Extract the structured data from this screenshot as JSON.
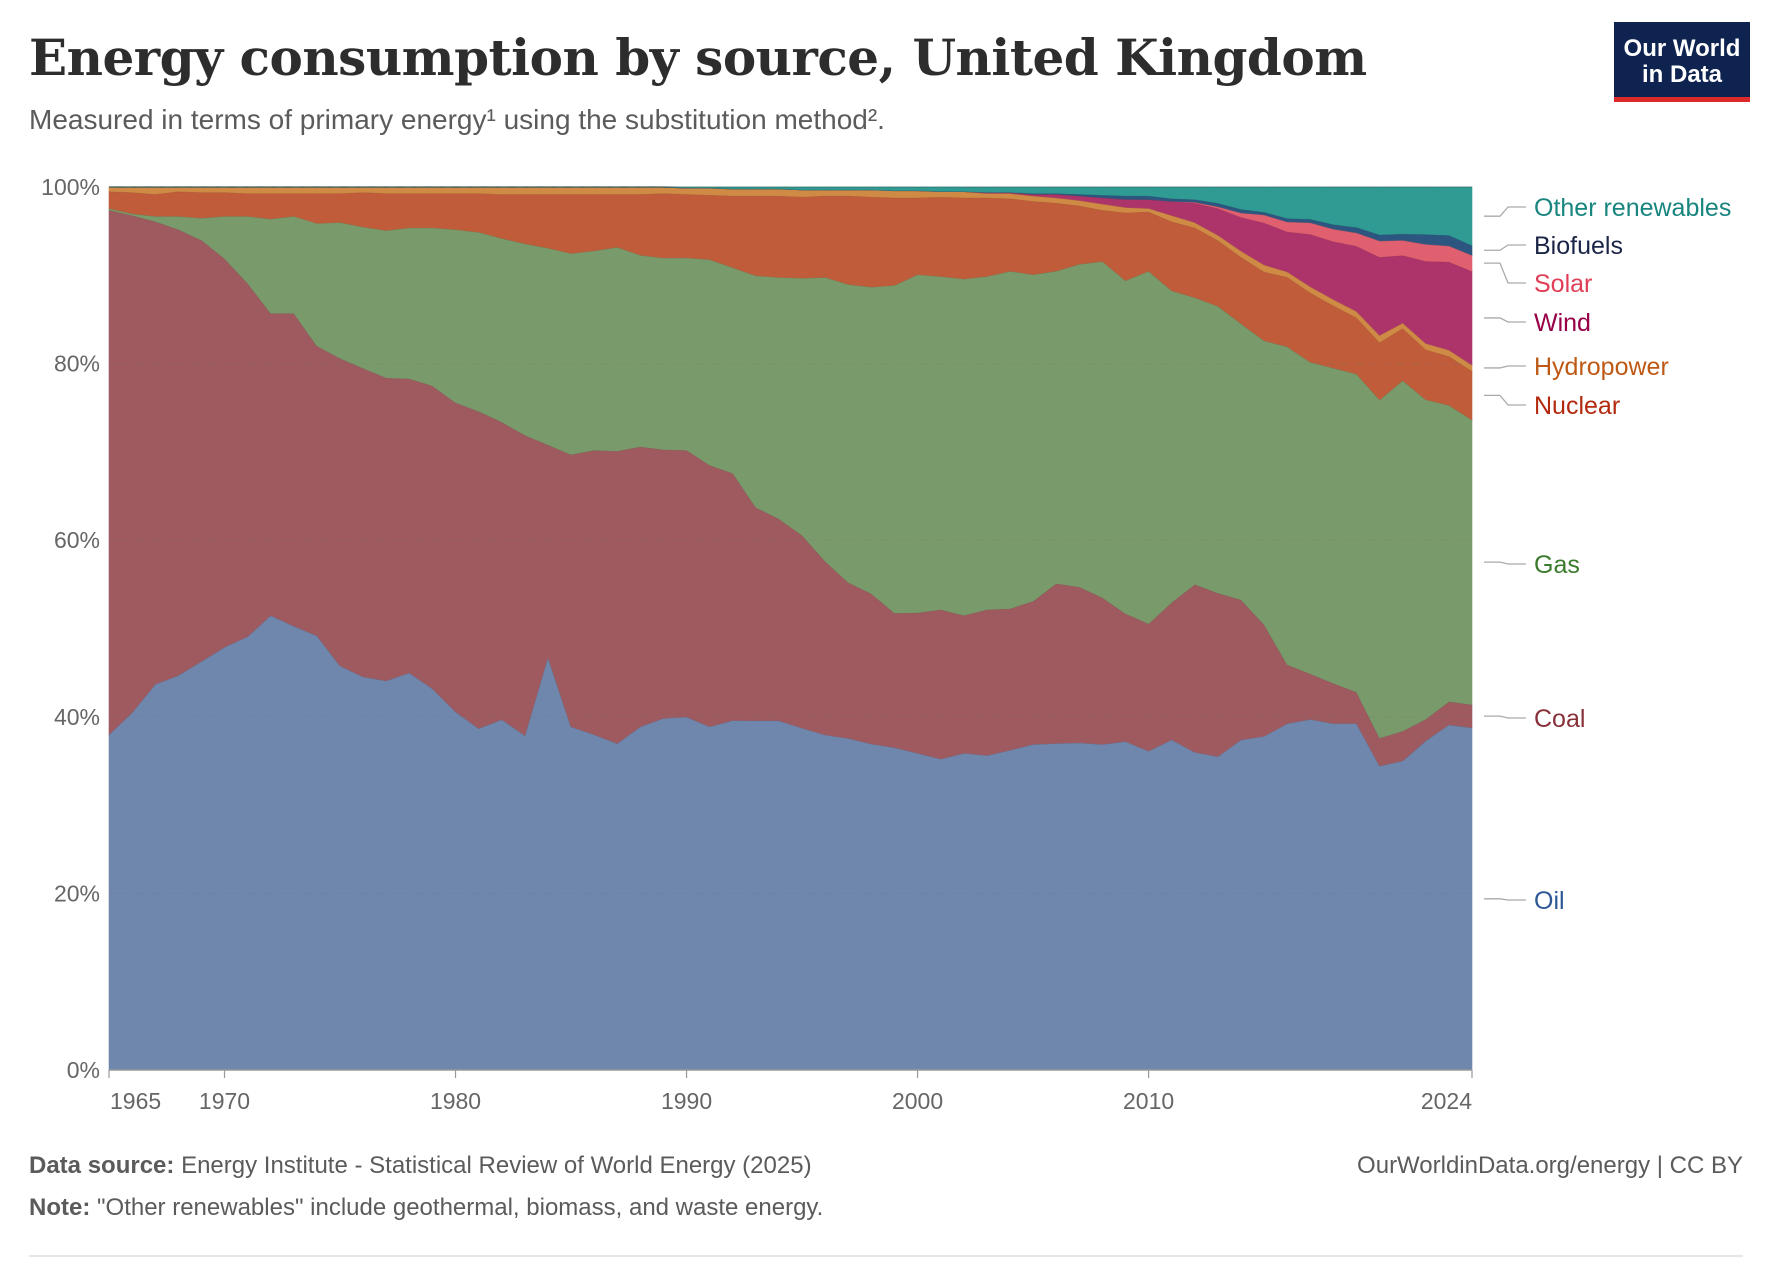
{
  "header": {
    "title": "Energy consumption by source, United Kingdom",
    "subtitle": "Measured in terms of primary energy¹ using the substitution method².",
    "logo_line1": "Our World",
    "logo_line2": "in Data"
  },
  "footer": {
    "source_label": "Data source:",
    "source_text": "Energy Institute - Statistical Review of World Energy (2025)",
    "note_label": "Note:",
    "note_text": "\"Other renewables\" include geothermal, biomass, and waste energy.",
    "credit": "OurWorldinData.org/energy | CC BY"
  },
  "chart_data": {
    "type": "area",
    "stacked": true,
    "normalized": true,
    "title": "Energy consumption by source, United Kingdom",
    "xlabel": "",
    "ylabel": "",
    "ylim": [
      0,
      100
    ],
    "y_ticks": [
      "0%",
      "20%",
      "40%",
      "60%",
      "80%",
      "100%"
    ],
    "y_tick_values": [
      0,
      20,
      40,
      60,
      80,
      100
    ],
    "x_ticks": [
      "1965",
      "1970",
      "1980",
      "1990",
      "2000",
      "2010",
      "2024"
    ],
    "x_tick_values": [
      1965,
      1970,
      1980,
      1990,
      2000,
      2010,
      2024
    ],
    "grid": "horizontal-dashed",
    "legend": "right",
    "x": [
      1965,
      1966,
      1967,
      1968,
      1969,
      1970,
      1971,
      1972,
      1973,
      1974,
      1975,
      1976,
      1977,
      1978,
      1979,
      1980,
      1981,
      1982,
      1983,
      1984,
      1985,
      1986,
      1987,
      1988,
      1989,
      1990,
      1991,
      1992,
      1993,
      1994,
      1995,
      1996,
      1997,
      1998,
      1999,
      2000,
      2001,
      2002,
      2003,
      2004,
      2005,
      2006,
      2007,
      2008,
      2009,
      2010,
      2011,
      2012,
      2013,
      2014,
      2015,
      2016,
      2017,
      2018,
      2019,
      2020,
      2021,
      2022,
      2023,
      2024
    ],
    "series": [
      {
        "name": "Oil",
        "color": "#6f87ad",
        "label_color": "#2c5896",
        "values": [
          38.0,
          40.5,
          43.7,
          44.7,
          46.3,
          47.9,
          49.1,
          51.5,
          50.3,
          49.2,
          45.8,
          44.5,
          44.1,
          45.0,
          43.2,
          40.6,
          38.7,
          39.7,
          37.9,
          46.8,
          38.9,
          38.0,
          37.0,
          38.9,
          39.8,
          40.0,
          38.9,
          39.6,
          39.5,
          39.5,
          38.7,
          37.9,
          37.5,
          36.9,
          36.5,
          35.9,
          35.2,
          35.9,
          35.6,
          36.2,
          36.9,
          37.0,
          37.0,
          36.9,
          37.3,
          36.1,
          37.3,
          36.0,
          35.3,
          37.3,
          37.4,
          38.9,
          39.5,
          38.9,
          38.8,
          33.9,
          34.4,
          36.9,
          38.8,
          38.7
        ]
      },
      {
        "name": "Coal",
        "color": "#9f5a60",
        "label_color": "#883039",
        "values": [
          59.4,
          56.3,
          52.4,
          50.5,
          47.7,
          44.0,
          40.0,
          34.2,
          35.4,
          32.8,
          34.8,
          34.9,
          34.3,
          33.3,
          34.3,
          35.0,
          35.9,
          33.7,
          34.0,
          24.0,
          30.8,
          32.2,
          33.1,
          31.7,
          30.4,
          30.2,
          29.6,
          28.0,
          24.1,
          22.8,
          21.8,
          19.6,
          17.6,
          17.0,
          15.2,
          15.9,
          16.9,
          15.6,
          16.5,
          16.0,
          16.2,
          18.1,
          17.6,
          16.6,
          14.5,
          14.4,
          15.5,
          19.0,
          18.4,
          15.8,
          12.5,
          6.6,
          5.1,
          4.5,
          3.5,
          3.1,
          3.3,
          2.4,
          2.6,
          2.6
        ]
      },
      {
        "name": "Gas",
        "color": "#799b6b",
        "label_color": "#3a7a2c",
        "values": [
          0.2,
          0.2,
          0.6,
          1.5,
          2.5,
          4.8,
          7.6,
          10.7,
          11.0,
          13.9,
          15.4,
          16.0,
          16.7,
          17.1,
          17.9,
          19.6,
          20.3,
          20.8,
          21.7,
          22.3,
          22.8,
          22.6,
          23.1,
          21.7,
          21.7,
          21.8,
          23.3,
          23.3,
          26.2,
          27.3,
          29.1,
          32.1,
          33.7,
          34.7,
          37.1,
          38.3,
          37.7,
          38.1,
          37.7,
          38.2,
          37.0,
          35.4,
          36.5,
          38.1,
          37.8,
          39.9,
          35.2,
          32.5,
          32.3,
          31.2,
          31.8,
          35.7,
          35.1,
          35.4,
          35.6,
          37.7,
          39.0,
          35.8,
          33.3,
          32.2
        ]
      },
      {
        "name": "Nuclear",
        "color": "#c05c3a",
        "label_color": "#b3290e",
        "values": [
          1.9,
          2.4,
          2.5,
          2.8,
          2.9,
          2.7,
          2.6,
          2.9,
          2.6,
          3.4,
          3.3,
          3.9,
          4.2,
          3.9,
          3.9,
          4.1,
          4.4,
          5.0,
          5.6,
          6.1,
          6.7,
          6.4,
          6.0,
          6.9,
          7.3,
          7.2,
          7.3,
          8.1,
          9.0,
          9.2,
          9.2,
          9.2,
          10.0,
          10.2,
          9.9,
          8.7,
          9.0,
          9.2,
          8.9,
          8.2,
          8.3,
          7.7,
          6.6,
          5.8,
          7.7,
          6.7,
          7.8,
          7.9,
          7.4,
          7.5,
          7.7,
          7.8,
          7.8,
          7.0,
          6.3,
          6.4,
          5.8,
          5.6,
          5.5,
          5.5
        ]
      },
      {
        "name": "Hydropower",
        "color": "#cf8a45",
        "label_color": "#be5915",
        "values": [
          0.5,
          0.6,
          0.8,
          0.5,
          0.6,
          0.6,
          0.7,
          0.7,
          0.7,
          0.7,
          0.7,
          0.6,
          0.7,
          0.7,
          0.7,
          0.7,
          0.7,
          0.8,
          0.8,
          0.8,
          0.8,
          0.8,
          0.8,
          0.8,
          0.7,
          0.7,
          0.8,
          0.8,
          0.8,
          0.8,
          0.8,
          0.7,
          0.7,
          0.8,
          0.8,
          0.8,
          0.6,
          0.7,
          0.5,
          0.6,
          0.6,
          0.6,
          0.6,
          0.7,
          0.6,
          0.4,
          0.7,
          0.6,
          0.6,
          0.7,
          0.8,
          0.6,
          0.7,
          0.7,
          0.7,
          0.8,
          0.6,
          0.7,
          0.7,
          0.7
        ]
      },
      {
        "name": "Wind",
        "color": "#ad336b",
        "label_color": "#970046",
        "values": [
          0,
          0,
          0,
          0,
          0,
          0,
          0,
          0,
          0,
          0,
          0,
          0,
          0,
          0,
          0,
          0,
          0,
          0,
          0,
          0,
          0,
          0,
          0,
          0,
          0,
          0,
          0,
          0,
          0,
          0,
          0,
          0,
          0,
          0,
          0,
          0,
          0,
          0,
          0.1,
          0.1,
          0.2,
          0.4,
          0.5,
          0.7,
          0.9,
          1.0,
          1.6,
          2.2,
          3.0,
          3.8,
          4.7,
          4.5,
          5.9,
          6.5,
          7.3,
          8.7,
          7.5,
          9.2,
          9.9,
          10.6
        ]
      },
      {
        "name": "Solar",
        "color": "#e0606f",
        "label_color": "#e03d56",
        "values": [
          0,
          0,
          0,
          0,
          0,
          0,
          0,
          0,
          0,
          0,
          0,
          0,
          0,
          0,
          0,
          0,
          0,
          0,
          0,
          0,
          0,
          0,
          0,
          0,
          0,
          0,
          0,
          0,
          0,
          0,
          0,
          0,
          0,
          0,
          0,
          0,
          0,
          0,
          0,
          0,
          0,
          0,
          0,
          0,
          0,
          0,
          0,
          0.1,
          0.2,
          0.5,
          0.9,
          1.1,
          1.3,
          1.4,
          1.5,
          1.8,
          1.7,
          1.9,
          1.8,
          1.8
        ]
      },
      {
        "name": "Biofuels",
        "color": "#2c5680",
        "label_color": "#1b2447",
        "values": [
          0,
          0,
          0,
          0,
          0,
          0,
          0,
          0,
          0,
          0,
          0,
          0,
          0,
          0,
          0,
          0,
          0,
          0,
          0,
          0,
          0,
          0,
          0,
          0,
          0,
          0,
          0,
          0,
          0,
          0,
          0,
          0,
          0,
          0,
          0,
          0,
          0,
          0,
          0,
          0,
          0.1,
          0.1,
          0.2,
          0.3,
          0.4,
          0.4,
          0.3,
          0.3,
          0.4,
          0.4,
          0.3,
          0.4,
          0.4,
          0.5,
          0.6,
          0.7,
          0.7,
          1.1,
          1.2,
          1.1
        ]
      },
      {
        "name": "Other renewables",
        "color": "#2f9b93",
        "label_color": "#18857f",
        "values": [
          0,
          0,
          0,
          0,
          0,
          0,
          0,
          0,
          0,
          0,
          0,
          0,
          0,
          0,
          0,
          0,
          0,
          0,
          0,
          0,
          0,
          0,
          0,
          0,
          0,
          0.1,
          0.1,
          0.2,
          0.2,
          0.2,
          0.3,
          0.3,
          0.3,
          0.3,
          0.4,
          0.4,
          0.5,
          0.5,
          0.6,
          0.6,
          0.7,
          0.7,
          0.8,
          0.9,
          1.0,
          1.0,
          1.3,
          1.4,
          1.8,
          2.5,
          2.8,
          3.5,
          3.6,
          4.2,
          4.5,
          5.3,
          5.2,
          5.3,
          5.4,
          6.6
        ]
      }
    ]
  }
}
